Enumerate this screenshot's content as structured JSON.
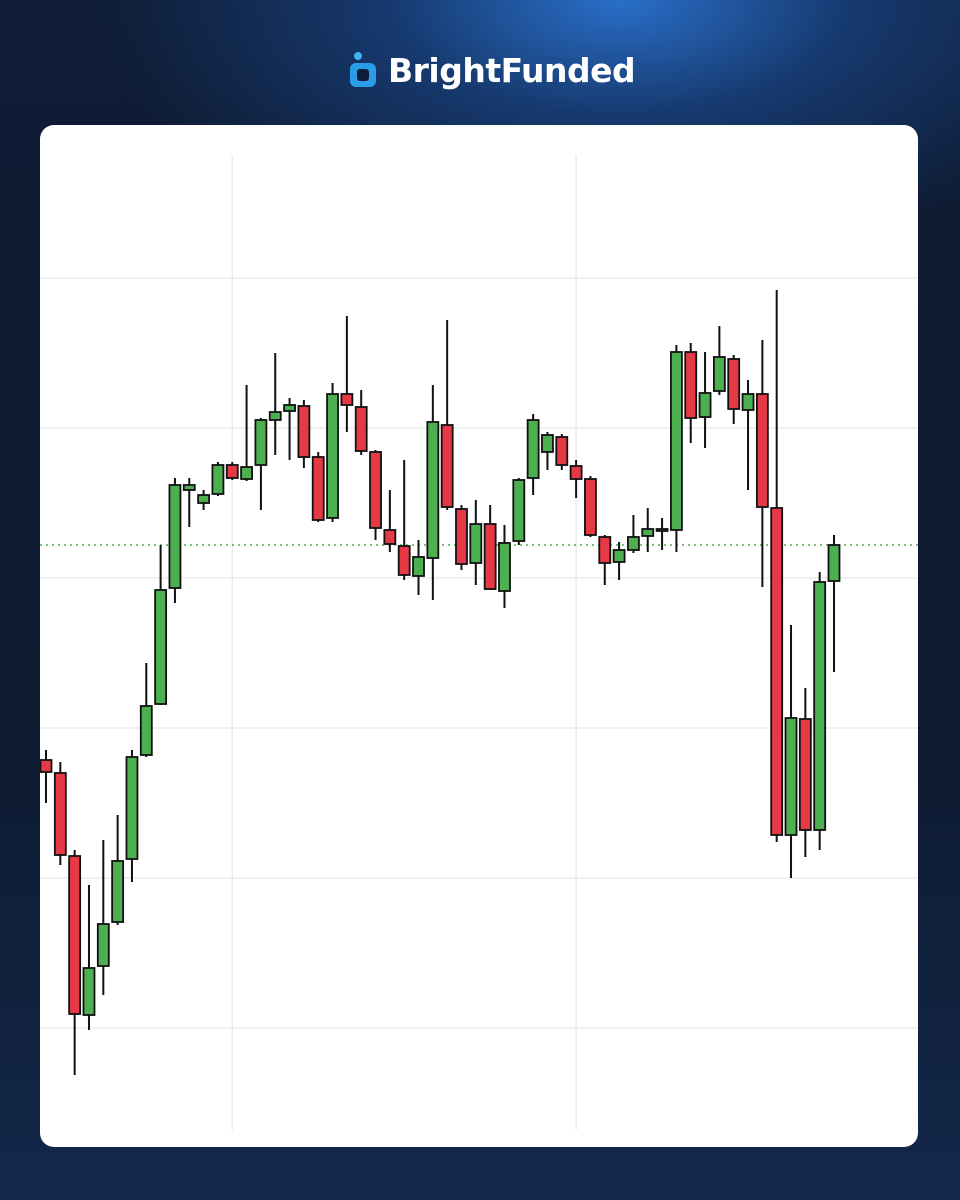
{
  "header": {
    "brand": "BrightFunded"
  },
  "chart_data": {
    "type": "candlestick",
    "open": [
      418,
      405,
      322,
      163,
      212,
      256,
      319,
      423,
      474,
      590,
      688,
      675,
      684,
      713,
      699,
      713,
      758,
      767,
      772,
      721,
      660,
      784,
      771,
      726,
      648,
      632,
      602,
      620,
      753,
      669,
      615,
      654,
      587,
      637,
      700,
      726,
      741,
      712,
      699,
      641,
      616,
      628,
      642,
      647,
      648,
      826,
      761,
      787,
      819,
      768,
      784,
      670,
      343,
      459,
      348,
      597
    ],
    "high": [
      428,
      416,
      328,
      293,
      338,
      363,
      428,
      515,
      633,
      700,
      700,
      688,
      716,
      716,
      793,
      760,
      825,
      780,
      778,
      726,
      795,
      862,
      788,
      728,
      688,
      718,
      638,
      793,
      858,
      673,
      678,
      673,
      653,
      700,
      764,
      746,
      744,
      718,
      702,
      643,
      636,
      663,
      670,
      660,
      833,
      835,
      826,
      852,
      823,
      798,
      838,
      888,
      553,
      490,
      606,
      643
    ],
    "low": [
      375,
      313,
      103,
      148,
      183,
      253,
      296,
      421,
      473,
      575,
      651,
      668,
      682,
      698,
      697,
      668,
      723,
      718,
      710,
      656,
      656,
      746,
      723,
      638,
      626,
      598,
      583,
      578,
      668,
      608,
      593,
      588,
      570,
      633,
      683,
      708,
      708,
      680,
      641,
      593,
      598,
      625,
      626,
      628,
      626,
      735,
      730,
      783,
      754,
      688,
      591,
      336,
      300,
      321,
      328,
      506
    ],
    "close": [
      406,
      323,
      164,
      210,
      254,
      317,
      421,
      472,
      588,
      693,
      693,
      683,
      713,
      700,
      711,
      758,
      766,
      773,
      721,
      658,
      784,
      773,
      727,
      650,
      634,
      603,
      621,
      756,
      671,
      614,
      654,
      589,
      635,
      698,
      758,
      743,
      713,
      699,
      643,
      615,
      628,
      641,
      649,
      649,
      826,
      760,
      785,
      821,
      769,
      784,
      671,
      343,
      460,
      348,
      596,
      633
    ],
    "up_color": "#4caf50",
    "down_color": "#e53945",
    "ylim": [
      48,
      1023
    ],
    "yticks": [
      150,
      300,
      450,
      600,
      750,
      900
    ],
    "xticks": [
      13,
      37
    ],
    "grid": true
  }
}
